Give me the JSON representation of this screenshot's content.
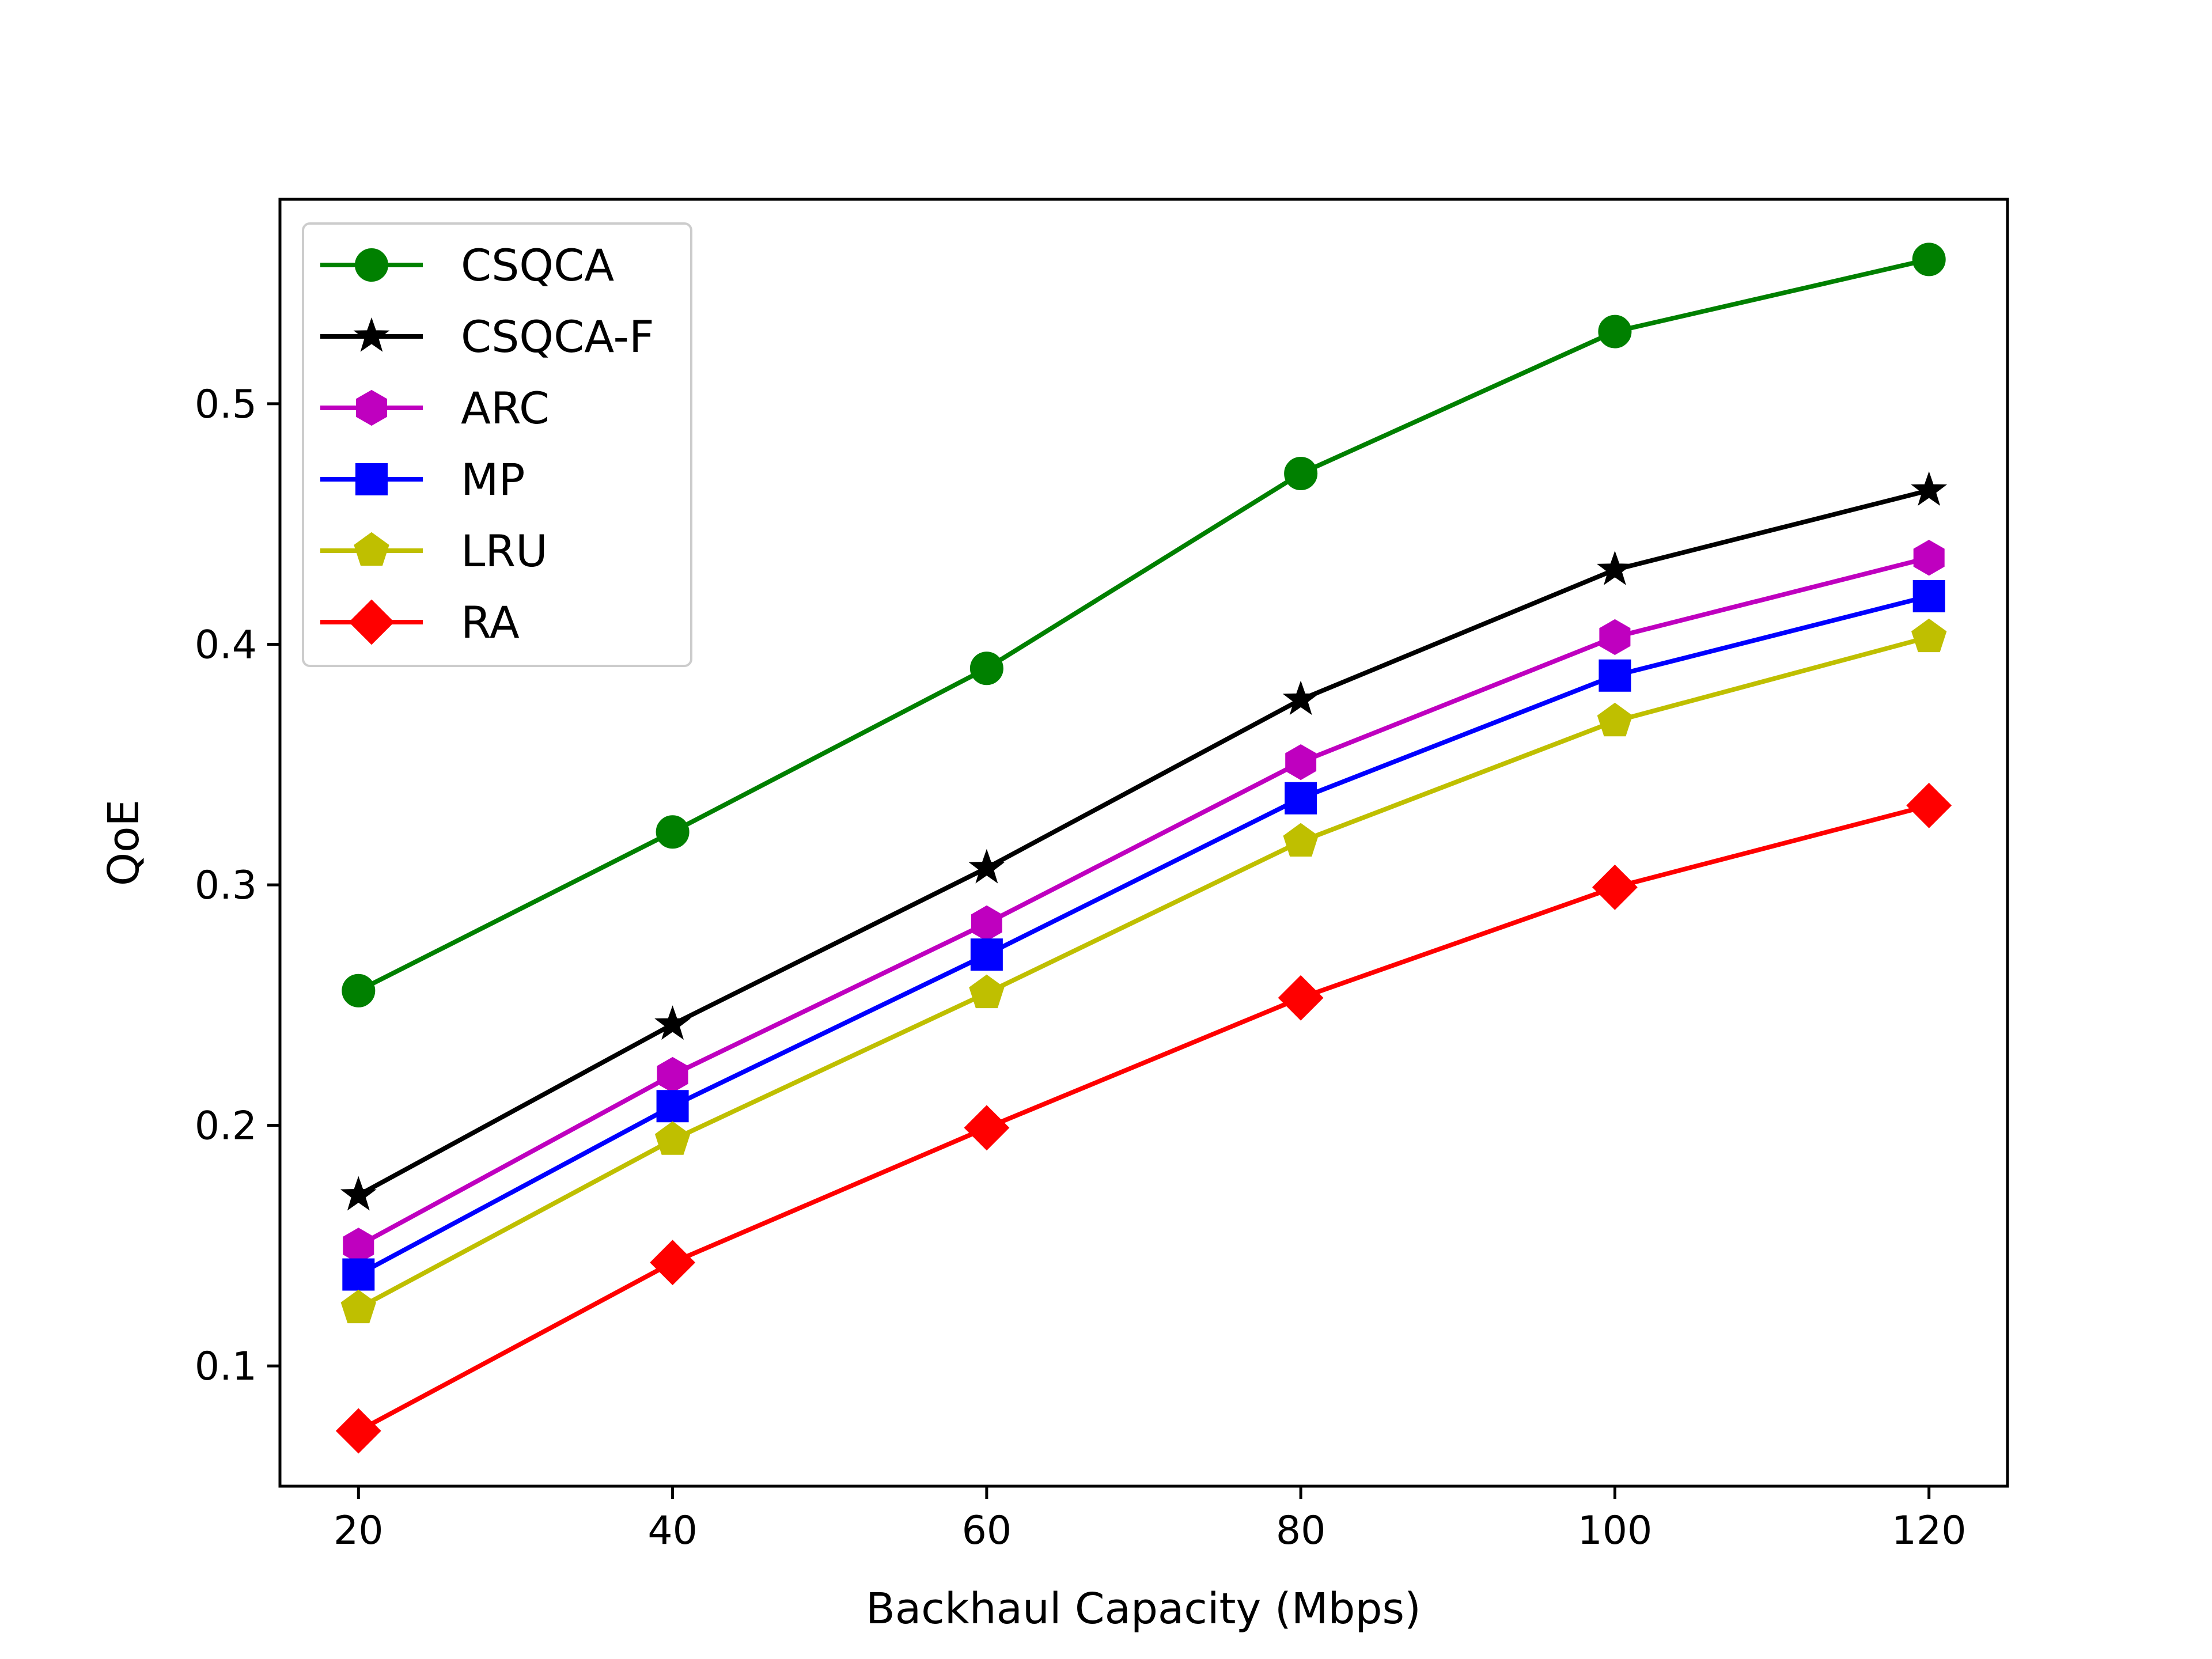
{
  "chart_data": {
    "type": "line",
    "title": "",
    "xlabel": "Backhaul Capacity (Mbps)",
    "ylabel": "QoE",
    "x": [
      20,
      40,
      60,
      80,
      100,
      120
    ],
    "xlim": [
      15,
      125
    ],
    "ylim": [
      0.05,
      0.585
    ],
    "xticks": [
      20,
      40,
      60,
      80,
      100,
      120
    ],
    "yticks": [
      0.1,
      0.2,
      0.3,
      0.4,
      0.5
    ],
    "grid": false,
    "legend_position": "upper-left",
    "series": [
      {
        "name": "CSQCA",
        "marker": "circle",
        "color": "#008000",
        "values": [
          0.256,
          0.322,
          0.39,
          0.471,
          0.53,
          0.56
        ]
      },
      {
        "name": "CSQCA-F",
        "marker": "star",
        "color": "#000000",
        "values": [
          0.171,
          0.242,
          0.307,
          0.377,
          0.431,
          0.464
        ]
      },
      {
        "name": "ARC",
        "marker": "hexagon",
        "color": "#bf00bf",
        "values": [
          0.15,
          0.221,
          0.284,
          0.351,
          0.403,
          0.436
        ]
      },
      {
        "name": "MP",
        "marker": "square",
        "color": "#0000ff",
        "values": [
          0.138,
          0.208,
          0.271,
          0.336,
          0.387,
          0.42
        ]
      },
      {
        "name": "LRU",
        "marker": "pentagon",
        "color": "#bfbf00",
        "values": [
          0.124,
          0.194,
          0.255,
          0.318,
          0.368,
          0.403
        ]
      },
      {
        "name": "RA",
        "marker": "diamond",
        "color": "#ff0000",
        "values": [
          0.073,
          0.143,
          0.199,
          0.253,
          0.299,
          0.333
        ]
      }
    ]
  }
}
